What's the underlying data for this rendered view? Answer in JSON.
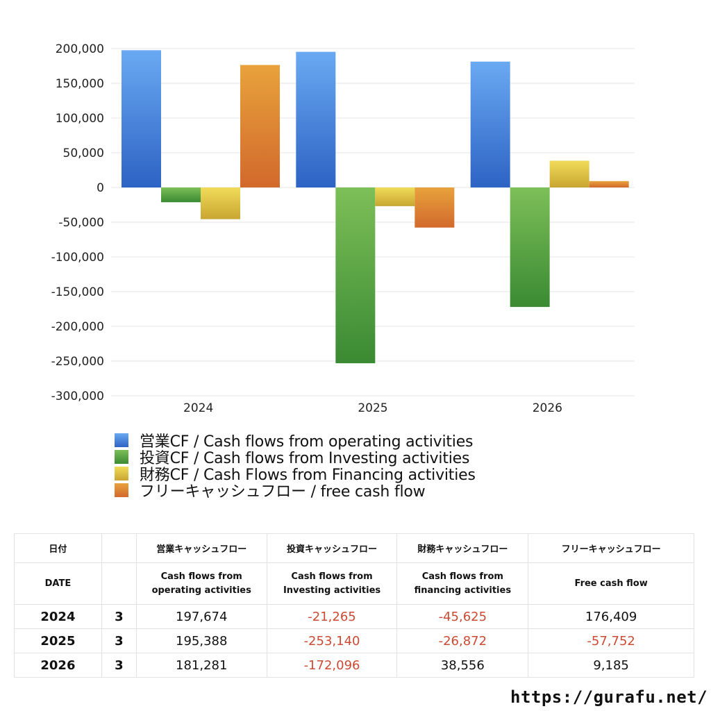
{
  "chart_data": {
    "type": "bar",
    "categories": [
      "2024",
      "2025",
      "2026"
    ],
    "series": [
      {
        "name": "営業CF / Cash flows from operating activities",
        "values": [
          197674,
          195388,
          181281
        ],
        "color_top": "#6aa9f2",
        "color_bottom": "#2d63c4"
      },
      {
        "name": "投資CF / Cash flows from Investing activities",
        "values": [
          -21265,
          -253140,
          -172096
        ],
        "color_top": "#7dbf58",
        "color_bottom": "#3a8a33"
      },
      {
        "name": "財務CF / Cash Flows from Financing activities",
        "values": [
          -45625,
          -26872,
          38556
        ],
        "color_top": "#f0dc58",
        "color_bottom": "#c8a532"
      },
      {
        "name": "フリーキャッシュフロー / free cash flow",
        "values": [
          176409,
          -57752,
          9185
        ],
        "color_top": "#e8a23c",
        "color_bottom": "#d2692c"
      }
    ],
    "yticks": [
      "200,000",
      "150,000",
      "100,000",
      "50,000",
      "0",
      "-50,000",
      "-100,000",
      "-150,000",
      "-200,000",
      "-250,000",
      "-300,000"
    ],
    "ylim": [
      -300000,
      200000
    ],
    "grid": true,
    "legend_position": "bottom"
  },
  "table": {
    "headers_jp": [
      "日付",
      "営業キャッシュフロー",
      "投資キャッシュフロー",
      "財務キャッシュフロー",
      "フリーキャッシュフロー"
    ],
    "headers_en": {
      "date": "DATE",
      "operating": [
        "Cash flows from",
        "operating activities"
      ],
      "investing": [
        "Cash flows from",
        "Investing activities"
      ],
      "financing": [
        "Cash flows from",
        "financing activities"
      ],
      "free": "Free cash flow"
    },
    "rows": [
      {
        "year": "2024",
        "month": "3",
        "operating": "197,674",
        "investing": "-21,265",
        "financing": "-45,625",
        "free": "176,409"
      },
      {
        "year": "2025",
        "month": "3",
        "operating": "195,388",
        "investing": "-253,140",
        "financing": "-26,872",
        "free": "-57,752"
      },
      {
        "year": "2026",
        "month": "3",
        "operating": "181,281",
        "investing": "-172,096",
        "financing": "38,556",
        "free": "9,185"
      }
    ],
    "negative_color": "#cc4a33"
  },
  "footer": {
    "url": "https://gurafu.net/"
  }
}
